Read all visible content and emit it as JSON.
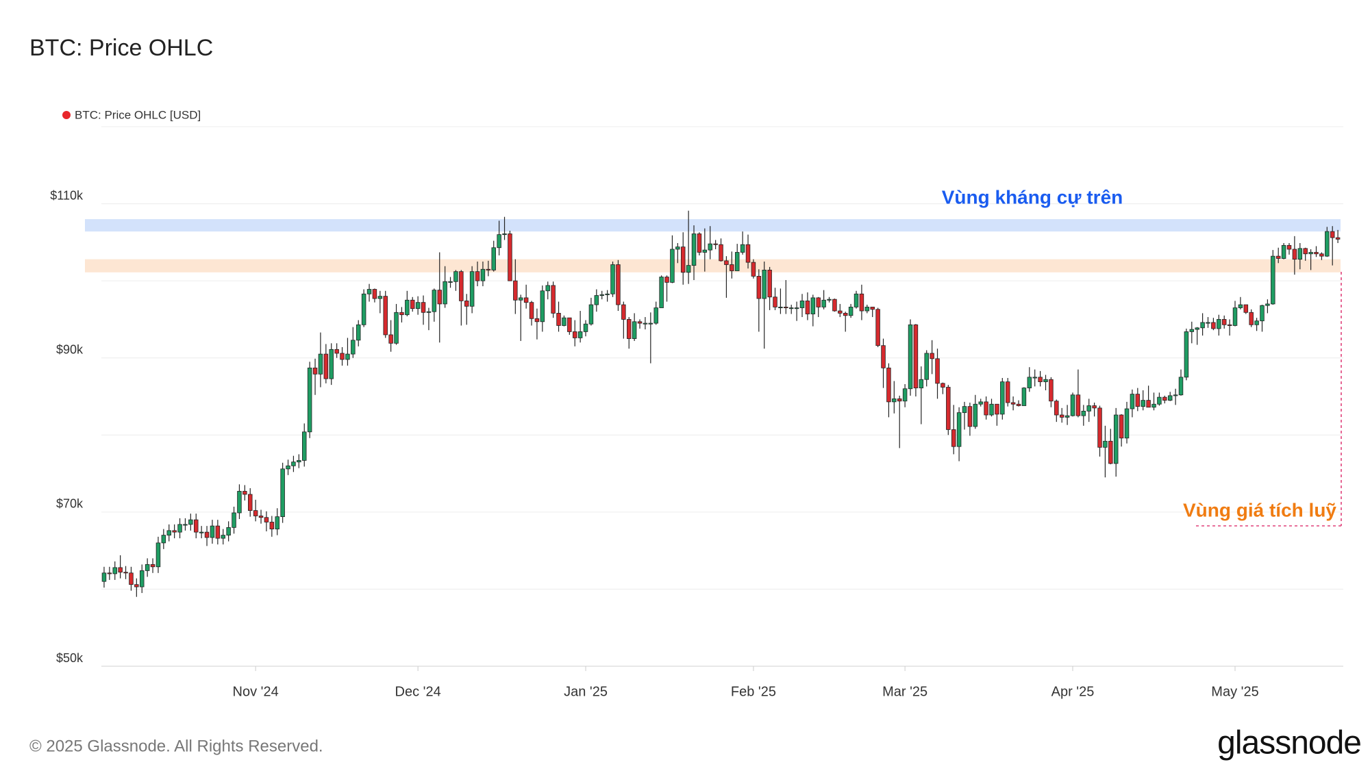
{
  "chart_data": {
    "type": "candlestick",
    "title": "BTC: Price OHLC",
    "series": [
      {
        "name": "BTC: Price OHLC [USD]",
        "color": "#e8262b",
        "open": [
          61000,
          62100,
          62000,
          62800,
          62200,
          62100,
          60600,
          60300,
          62400,
          63200,
          62900,
          66000,
          67000,
          67600,
          67400,
          68400,
          68400,
          69000,
          67400,
          67400,
          66700,
          68200,
          66600,
          67000,
          68000,
          69900,
          72700,
          72300,
          70200,
          69500,
          69300,
          68700,
          67800,
          69400,
          75600,
          76000,
          76500,
          76700,
          80400,
          88700,
          87900,
          90500,
          87300,
          91100,
          90600,
          89800,
          90500,
          92300,
          94300,
          98300,
          98900,
          97700,
          98000,
          93000,
          91900,
          95900,
          95600,
          97500,
          96400,
          97200,
          95900,
          96000,
          98800,
          97000,
          99900,
          99900,
          101200,
          97400,
          96700,
          101200,
          100000,
          101500,
          101400,
          104300,
          106000,
          106100,
          100000,
          97500,
          97800,
          97200,
          95100,
          94700,
          98700,
          99400,
          95800,
          94200,
          95200,
          93400,
          92600,
          93400,
          94400,
          96900,
          98100,
          98200,
          98300,
          102100,
          96900,
          95000,
          92500,
          94700,
          94500,
          94500,
          94500,
          96500,
          100500,
          99800,
          104100,
          104400,
          101100,
          102000,
          106100,
          103700,
          104000,
          104800,
          104700,
          102600,
          102100,
          101300,
          103700,
          104700,
          102400,
          100600,
          97700,
          101400,
          97900,
          96600,
          96600,
          96500,
          96500,
          96500,
          97400,
          95700,
          97800,
          96600,
          97500,
          97600,
          96100,
          95800,
          95500,
          96600,
          98300,
          96100,
          96600,
          96300,
          91600,
          88700,
          84300,
          84700,
          84400,
          86000,
          94300,
          86100,
          87200,
          90600,
          89900,
          86700,
          86200,
          80700,
          78500,
          82900,
          83700,
          81100,
          84000,
          84300,
          82600,
          84000,
          82700,
          86900,
          84200,
          84000,
          83800,
          86100,
          87500,
          87500,
          86900,
          87200,
          84400,
          82600,
          82300,
          82500,
          85200,
          82500,
          83100,
          83800,
          83500,
          78400,
          79200,
          76300,
          82600,
          79600,
          83400,
          85300,
          83700,
          84500,
          83600,
          84000,
          84900,
          84500,
          85100,
          85200,
          87500,
          93400,
          93700,
          93900,
          94600,
          94600,
          93800,
          95000,
          94300,
          94200,
          96500,
          96900,
          95900,
          94300,
          94800,
          96800,
          97000,
          103200,
          102900,
          104600,
          104100,
          102800,
          104200,
          103500,
          103700,
          103500,
          103200,
          106400,
          105600
        ],
        "high": [
          62900,
          62900,
          63600,
          64400,
          63000,
          62900,
          61400,
          63200,
          64000,
          64000,
          66800,
          67800,
          68400,
          68400,
          69200,
          69200,
          69800,
          69800,
          68200,
          68200,
          69000,
          69000,
          67800,
          68800,
          70700,
          73600,
          73500,
          73100,
          71600,
          70300,
          70100,
          69500,
          70500,
          76400,
          76800,
          77300,
          77500,
          81500,
          89500,
          89900,
          93300,
          91800,
          91900,
          91900,
          91400,
          92600,
          94000,
          94900,
          98900,
          99600,
          99000,
          98700,
          98700,
          94900,
          97000,
          96600,
          98700,
          97900,
          98000,
          98100,
          96500,
          99000,
          103700,
          101900,
          100500,
          101400,
          101400,
          98300,
          101900,
          102500,
          102500,
          102600,
          105200,
          107800,
          108300,
          106500,
          102800,
          98200,
          99500,
          97400,
          96400,
          99400,
          99900,
          99900,
          97300,
          95500,
          95200,
          94900,
          96100,
          94900,
          97800,
          98900,
          98700,
          98800,
          102500,
          102700,
          97300,
          95300,
          95800,
          95000,
          95300,
          95900,
          97300,
          100700,
          100700,
          105900,
          104900,
          106300,
          109100,
          107200,
          106300,
          106800,
          107100,
          105300,
          105500,
          103200,
          103800,
          104800,
          106400,
          106000,
          102800,
          101500,
          102500,
          101800,
          99100,
          99000,
          100100,
          96900,
          97300,
          98300,
          98500,
          98200,
          97900,
          98800,
          97900,
          97700,
          97000,
          96000,
          97000,
          98700,
          99500,
          96900,
          96600,
          96500,
          92500,
          89300,
          87000,
          85100,
          86600,
          95000,
          94400,
          88900,
          91000,
          92300,
          91200,
          86800,
          86500,
          83900,
          83600,
          84300,
          84200,
          85200,
          84700,
          85000,
          84700,
          84000,
          87400,
          87400,
          85000,
          84500,
          86200,
          88800,
          88500,
          88300,
          87800,
          87500,
          84600,
          83500,
          83900,
          85500,
          88500,
          83900,
          84700,
          84200,
          83800,
          81200,
          80800,
          83500,
          82700,
          84300,
          85900,
          86100,
          85800,
          86400,
          85500,
          85500,
          85100,
          85600,
          86000,
          88500,
          93800,
          94700,
          94000,
          95800,
          95300,
          95200,
          95600,
          95500,
          95000,
          97400,
          97900,
          96900,
          96300,
          95200,
          96900,
          97600,
          104000,
          104300,
          104900,
          104900,
          105800,
          104900,
          104300,
          104100,
          104500,
          103700,
          107000,
          107100,
          106600
        ],
        "low": [
          60200,
          61200,
          61200,
          61400,
          61300,
          59800,
          59000,
          59500,
          61600,
          62100,
          62100,
          65200,
          66200,
          66600,
          66600,
          67600,
          67600,
          66600,
          66600,
          65600,
          65900,
          65800,
          65800,
          66200,
          67200,
          69100,
          71500,
          69400,
          68800,
          68500,
          67500,
          66800,
          67000,
          68600,
          74800,
          75200,
          75700,
          75900,
          79600,
          85200,
          86200,
          86700,
          86500,
          90000,
          89000,
          89000,
          90000,
          91500,
          94000,
          97300,
          97200,
          95800,
          92600,
          90800,
          91700,
          94600,
          95400,
          96000,
          95600,
          94300,
          93600,
          94700,
          92000,
          96500,
          99100,
          98700,
          94200,
          94300,
          95800,
          99300,
          99300,
          100600,
          101200,
          103300,
          105300,
          100000,
          95700,
          92200,
          96400,
          94200,
          92400,
          93400,
          97600,
          95200,
          93400,
          94100,
          93000,
          91500,
          92000,
          92800,
          94200,
          96000,
          97600,
          97300,
          97900,
          96100,
          92500,
          91200,
          92200,
          93800,
          93700,
          89300,
          94300,
          96500,
          97300,
          99700,
          102300,
          99500,
          99600,
          100100,
          103300,
          101200,
          102800,
          104100,
          102500,
          97800,
          100300,
          101300,
          103400,
          101600,
          100300,
          93400,
          91200,
          96200,
          96200,
          95700,
          95700,
          95700,
          94800,
          95300,
          94900,
          94100,
          95300,
          96300,
          97200,
          96000,
          95300,
          93400,
          95200,
          96400,
          94900,
          95800,
          95300,
          91400,
          86100,
          82300,
          82800,
          78300,
          83600,
          85100,
          85000,
          81400,
          86300,
          87900,
          84700,
          85300,
          80000,
          77500,
          76600,
          80700,
          79900,
          80800,
          83700,
          82000,
          82400,
          81200,
          82000,
          83700,
          83200,
          83700,
          83800,
          85600,
          86300,
          86300,
          85800,
          83600,
          81700,
          81600,
          81300,
          82400,
          82300,
          81200,
          81700,
          82400,
          77200,
          74500,
          76200,
          74600,
          78500,
          78900,
          82300,
          83100,
          83200,
          83600,
          83200,
          83800,
          84100,
          84400,
          83900,
          85100,
          87100,
          91900,
          91700,
          92900,
          93900,
          93600,
          92900,
          93800,
          92900,
          94100,
          96300,
          95700,
          94000,
          93500,
          93400,
          95800,
          96900,
          102300,
          102800,
          103400,
          100800,
          101500,
          102600,
          101400,
          103100,
          102700,
          103100,
          102000,
          104900
        ],
        "close": [
          62100,
          62000,
          62800,
          62200,
          62100,
          60600,
          60300,
          62400,
          63200,
          62900,
          66000,
          67000,
          67600,
          67400,
          68400,
          68400,
          69000,
          67400,
          67400,
          66700,
          68200,
          66600,
          67000,
          68000,
          69900,
          72700,
          72300,
          70200,
          69500,
          69300,
          68700,
          67800,
          69400,
          75600,
          76000,
          76500,
          76700,
          80400,
          88700,
          87900,
          90500,
          87300,
          91100,
          90600,
          89800,
          90500,
          92300,
          94300,
          98300,
          98900,
          97700,
          98000,
          93000,
          91900,
          95900,
          95600,
          97500,
          96400,
          97200,
          95900,
          96000,
          98800,
          97000,
          99900,
          99900,
          101200,
          97400,
          96700,
          101200,
          100000,
          101500,
          101400,
          104300,
          106000,
          106100,
          100000,
          97500,
          97800,
          97200,
          95100,
          94700,
          98700,
          99400,
          95800,
          94200,
          95200,
          93400,
          92600,
          93400,
          94400,
          96900,
          98100,
          98200,
          98300,
          102100,
          96900,
          95000,
          92500,
          94700,
          94500,
          94500,
          94500,
          96500,
          100500,
          99800,
          104100,
          104400,
          101100,
          102000,
          106100,
          103700,
          104000,
          104800,
          104700,
          102600,
          102100,
          101300,
          103700,
          104700,
          102400,
          100600,
          97700,
          101400,
          97900,
          96600,
          96600,
          96500,
          96500,
          96500,
          97400,
          95700,
          97800,
          96600,
          97500,
          97600,
          96100,
          95800,
          95500,
          96600,
          98300,
          96100,
          96600,
          96300,
          91600,
          88700,
          84300,
          84700,
          84400,
          86000,
          94300,
          86100,
          87200,
          90600,
          89900,
          86700,
          86200,
          80700,
          78500,
          82900,
          83700,
          81100,
          84000,
          84300,
          82600,
          84000,
          82700,
          86900,
          84200,
          84000,
          83800,
          86100,
          87500,
          87500,
          86900,
          87200,
          84400,
          82600,
          82300,
          82500,
          85200,
          82500,
          83100,
          83800,
          83500,
          78400,
          79200,
          76300,
          82600,
          79600,
          83400,
          85300,
          83700,
          84500,
          83600,
          84000,
          84900,
          84500,
          85100,
          85200,
          87500,
          93400,
          93700,
          93900,
          94600,
          94600,
          93800,
          95000,
          94300,
          94200,
          96500,
          96900,
          95900,
          94300,
          94800,
          96800,
          97000,
          103200,
          102900,
          104600,
          104100,
          102800,
          104200,
          103500,
          103700,
          103500,
          103200,
          106400,
          105600,
          105400
        ]
      }
    ],
    "up_color": "#1f9d63",
    "down_color": "#d62a2e",
    "xlim": [
      -0.5,
      229
    ],
    "xticks": [
      {
        "value": 28,
        "label": "Nov '24"
      },
      {
        "value": 58,
        "label": "Dec '24"
      },
      {
        "value": 89,
        "label": "Jan '25"
      },
      {
        "value": 120,
        "label": "Feb '25"
      },
      {
        "value": 148,
        "label": "Mar '25"
      },
      {
        "value": 179,
        "label": "Apr '25"
      },
      {
        "value": 209,
        "label": "May '25"
      }
    ],
    "ylim": [
      50000,
      120000
    ],
    "yticks": [
      {
        "value": 50000,
        "label": "$50k"
      },
      {
        "value": 70000,
        "label": "$70k"
      },
      {
        "value": 90000,
        "label": "$90k"
      },
      {
        "value": 110000,
        "label": "$110k"
      }
    ],
    "ygrid": [
      60000,
      80000,
      100000,
      120000
    ],
    "grid": true,
    "bands": [
      {
        "label": "Vùng kháng cự trên",
        "from": 106400,
        "to": 108000,
        "color": "#d3e2fb",
        "text_color": "#1a5cf0"
      },
      {
        "label": "Vùng giá tích luỹ",
        "from": 101100,
        "to": 102800,
        "color": "#fde6d3",
        "text_color": "#f07c12"
      }
    ],
    "footer": "© 2025 Glassnode. All Rights Reserved.",
    "logo": "glassnode"
  }
}
